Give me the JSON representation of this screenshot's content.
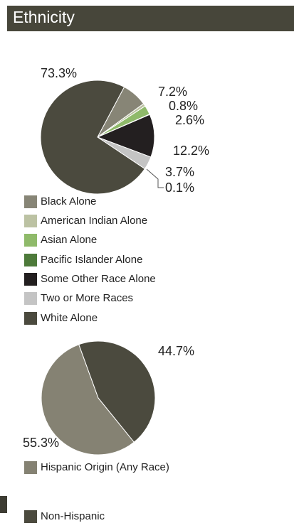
{
  "header": {
    "title": "Ethnicity"
  },
  "chart_data": [
    {
      "type": "pie",
      "categories": [
        "Black Alone",
        "American Indian Alone",
        "Asian Alone",
        "Pacific Islander Alone",
        "Some Other Race Alone",
        "Two or More Races",
        "White Alone"
      ],
      "values": [
        7.2,
        0.8,
        2.6,
        0.1,
        12.2,
        3.7,
        73.3
      ],
      "value_labels": [
        "7.2%",
        "0.8%",
        "2.6%",
        "0.1%",
        "12.2%",
        "3.7%",
        "73.3%"
      ],
      "colors": [
        "#878576",
        "#bcc2a3",
        "#8fba6a",
        "#4d7a3a",
        "#231f20",
        "#c4c4c4",
        "#4b4a3e"
      ]
    },
    {
      "type": "pie",
      "categories": [
        "Hispanic Origin (Any Race)",
        "Non-Hispanic"
      ],
      "values": [
        55.3,
        44.7
      ],
      "value_labels": [
        "55.3%",
        "44.7%"
      ],
      "colors": [
        "#858273",
        "#4b4a3e"
      ]
    }
  ]
}
